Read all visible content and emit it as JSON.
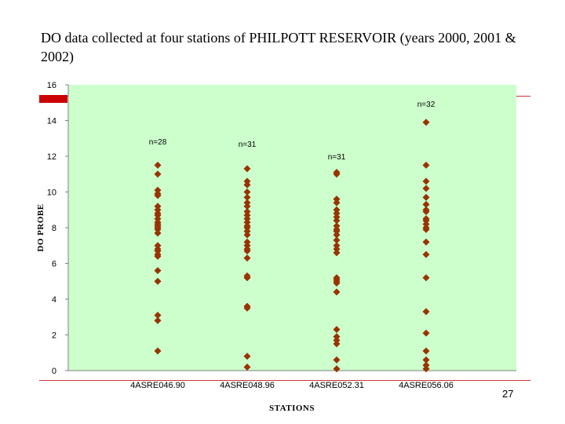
{
  "title": "DO data collected at four stations of PHILPOTT RESERVOIR (years 2000, 2001 & 2002)",
  "page_number": "27",
  "colors": {
    "plot_background": "#ccffcc",
    "marker": "#993300",
    "accent_red": "#cc0000"
  },
  "chart_data": {
    "type": "scatter",
    "xlabel": "STATIONS",
    "ylabel": "DO PROBE",
    "ylim": [
      0,
      16
    ],
    "yticks": [
      0,
      2,
      4,
      6,
      8,
      10,
      12,
      14,
      16
    ],
    "categories": [
      "4ASRE046.90",
      "4ASRE048.96",
      "4ASRE052.31",
      "4ASRE056.06"
    ],
    "n_labels": [
      "n=28",
      "n=31",
      "n=31",
      "n=32"
    ],
    "grid": false,
    "series": [
      {
        "values": [
          11.5,
          11.0,
          10.1,
          9.9,
          9.8,
          9.2,
          9.0,
          8.8,
          8.7,
          8.5,
          8.3,
          8.2,
          8.1,
          8.0,
          7.9,
          7.7,
          7.0,
          6.8,
          6.7,
          6.5,
          6.4,
          5.6,
          5.0,
          3.1,
          2.8,
          1.1
        ]
      },
      {
        "values": [
          11.3,
          10.6,
          10.4,
          10.0,
          9.7,
          9.4,
          9.2,
          8.9,
          8.7,
          8.5,
          8.3,
          8.1,
          8.0,
          7.8,
          7.6,
          7.2,
          7.0,
          6.8,
          6.7,
          6.3,
          5.3,
          5.2,
          3.6,
          3.5,
          0.8,
          0.2
        ]
      },
      {
        "values": [
          11.1,
          11.0,
          9.6,
          9.4,
          9.0,
          8.8,
          8.6,
          8.4,
          8.1,
          7.9,
          7.8,
          7.6,
          7.3,
          7.0,
          6.8,
          6.6,
          5.2,
          5.1,
          5.0,
          4.9,
          4.4,
          2.3,
          1.9,
          1.7,
          1.5,
          0.6,
          0.1
        ]
      },
      {
        "values": [
          13.9,
          11.5,
          10.6,
          10.2,
          9.7,
          9.3,
          9.0,
          8.9,
          8.5,
          8.4,
          8.2,
          8.0,
          7.9,
          7.2,
          6.5,
          5.2,
          3.3,
          2.1,
          1.1,
          0.6,
          0.3,
          0.1
        ]
      }
    ]
  }
}
